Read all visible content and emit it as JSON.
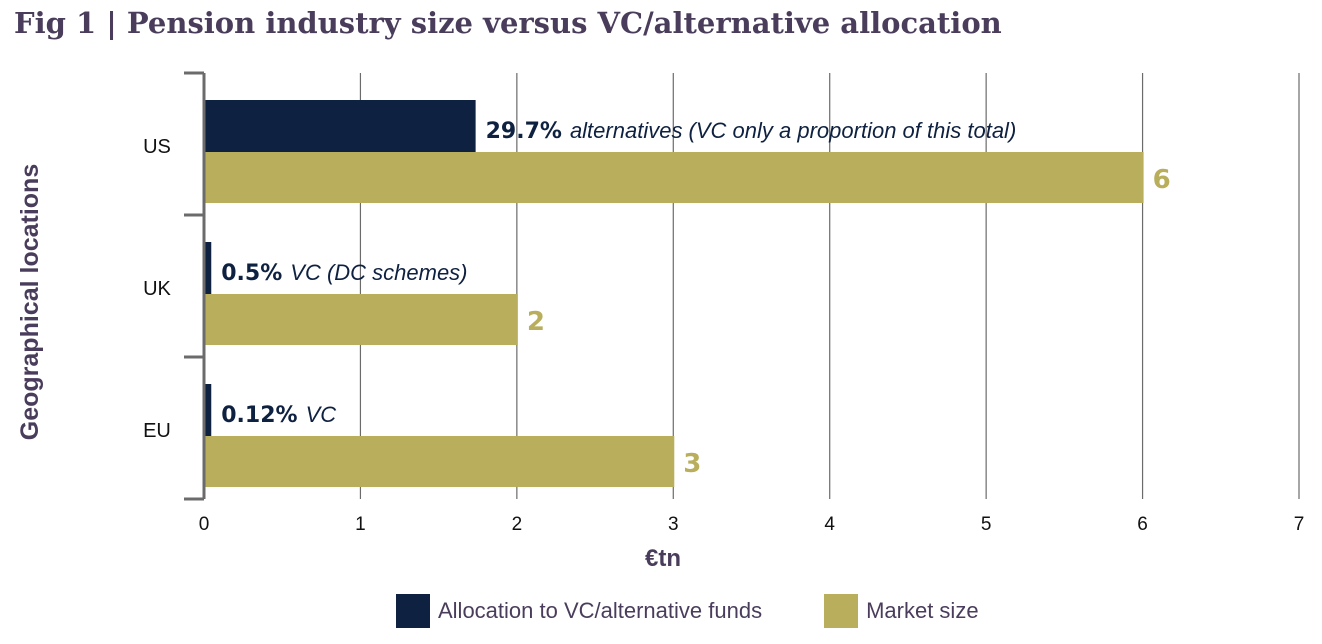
{
  "title": "Fig 1 | Pension industry size versus VC/alternative allocation",
  "colors": {
    "allocation": "#0f2140",
    "market": "#b8ae5b",
    "text_purple": "#4a3d5c"
  },
  "chart_data": {
    "type": "bar",
    "orientation": "horizontal",
    "categories": [
      "US",
      "UK",
      "EU"
    ],
    "series": [
      {
        "name": "Allocation to VC/alternative funds",
        "values": [
          1.73,
          0.04,
          0.04
        ]
      },
      {
        "name": "Market size",
        "values": [
          6,
          2,
          3
        ]
      }
    ],
    "annotations": [
      {
        "category": "US",
        "pct": "29.7%",
        "note": "alternatives (VC only a proportion of this total)"
      },
      {
        "category": "UK",
        "pct": "0.5%",
        "note": "VC (DC schemes)"
      },
      {
        "category": "EU",
        "pct": "0.12%",
        "note": "VC"
      }
    ],
    "value_labels": [
      "6",
      "2",
      "3"
    ],
    "xlabel": "€tn",
    "ylabel": "Geographical locations",
    "xlim": [
      0,
      7
    ],
    "xticks": [
      "0",
      "1",
      "2",
      "3",
      "4",
      "5",
      "6",
      "7"
    ],
    "grid": true,
    "legend_position": "bottom"
  }
}
